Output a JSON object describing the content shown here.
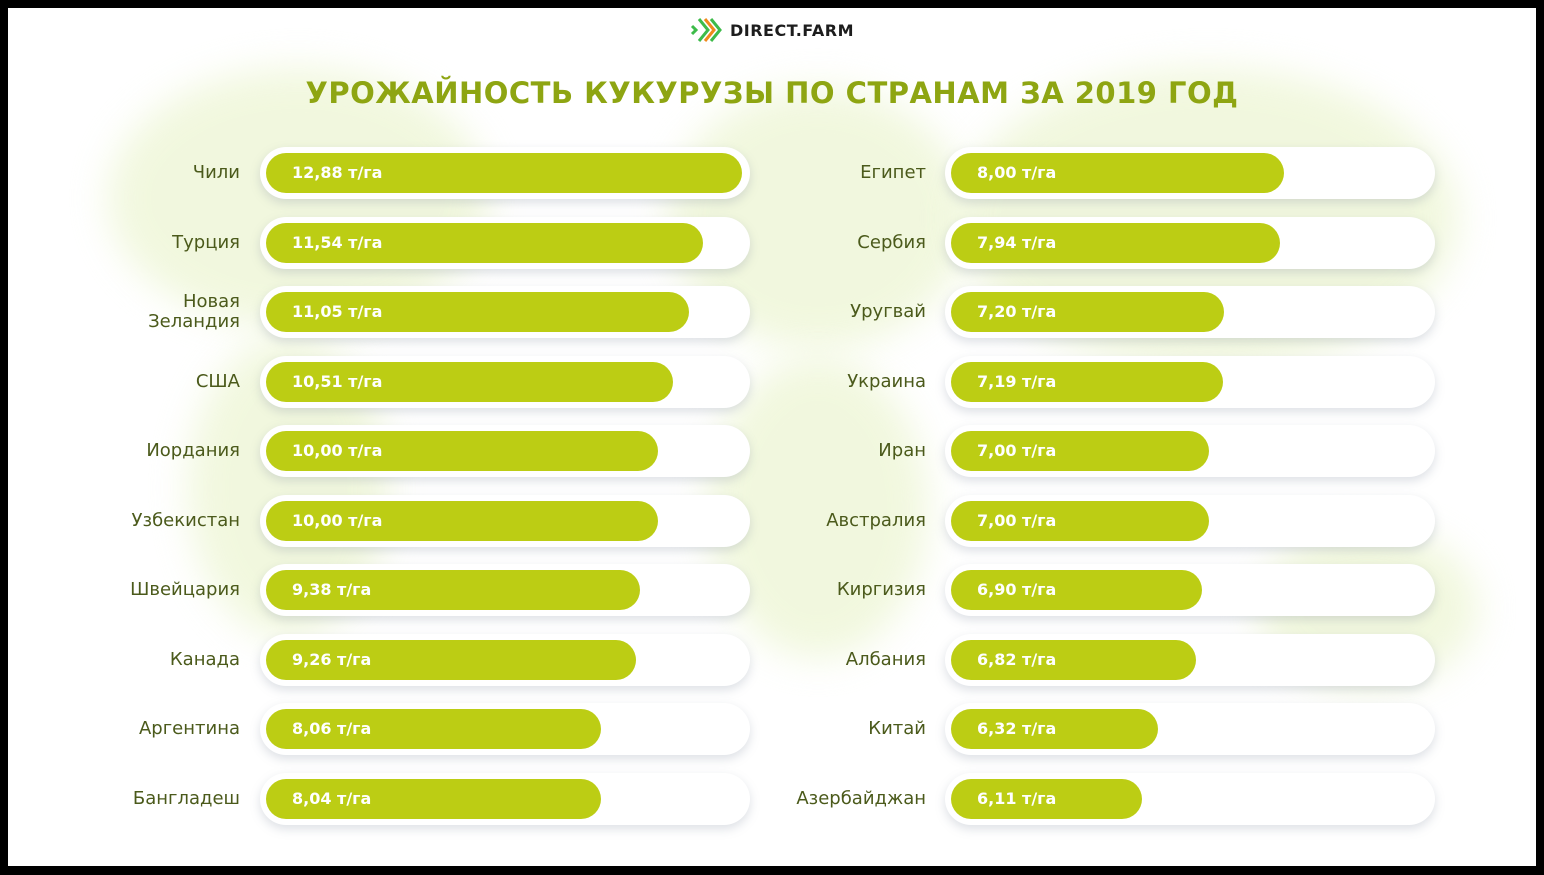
{
  "logo": {
    "text": "DIRECT.FARM",
    "colors": [
      "#3dbb4a",
      "#f08a1c"
    ]
  },
  "chart_data": {
    "type": "bar",
    "orientation": "horizontal",
    "title": "УРОЖАЙНОСТЬ КУКУРУЗЫ ПО СТРАНАМ ЗА 2019 ГОД",
    "unit": "т/га",
    "bar_color": "#bccd14",
    "columns": [
      {
        "categories": [
          "Чили",
          "Турция",
          "Новая Зеландия",
          "США",
          "Иордания",
          "Узбекистан",
          "Швейцария",
          "Канада",
          "Аргентина",
          "Бангладеш"
        ],
        "values": [
          12.88,
          11.54,
          11.05,
          10.51,
          10.0,
          10.0,
          9.38,
          9.26,
          8.06,
          8.04
        ],
        "labels": [
          "12,88 т/га",
          "11,54 т/га",
          "11,05 т/га",
          "10,51 т/га",
          "10,00 т/га",
          "10,00 т/га",
          "9,38 т/га",
          "9,26 т/га",
          "8,06 т/га",
          "8,04 т/га"
        ]
      },
      {
        "categories": [
          "Египет",
          "Сербия",
          "Уругвай",
          "Украина",
          "Иран",
          "Австралия",
          "Киргизия",
          "Албания",
          "Китай",
          "Азербайджан"
        ],
        "values": [
          8.0,
          7.94,
          7.2,
          7.19,
          7.0,
          7.0,
          6.9,
          6.82,
          6.32,
          6.11
        ],
        "labels": [
          "8,00 т/га",
          "7,94 т/га",
          "7,20 т/га",
          "7,19 т/га",
          "7,00 т/га",
          "7,00 т/га",
          "6,90 т/га",
          "6,82 т/га",
          "6,32 т/га",
          "6,11 т/га"
        ]
      }
    ]
  }
}
